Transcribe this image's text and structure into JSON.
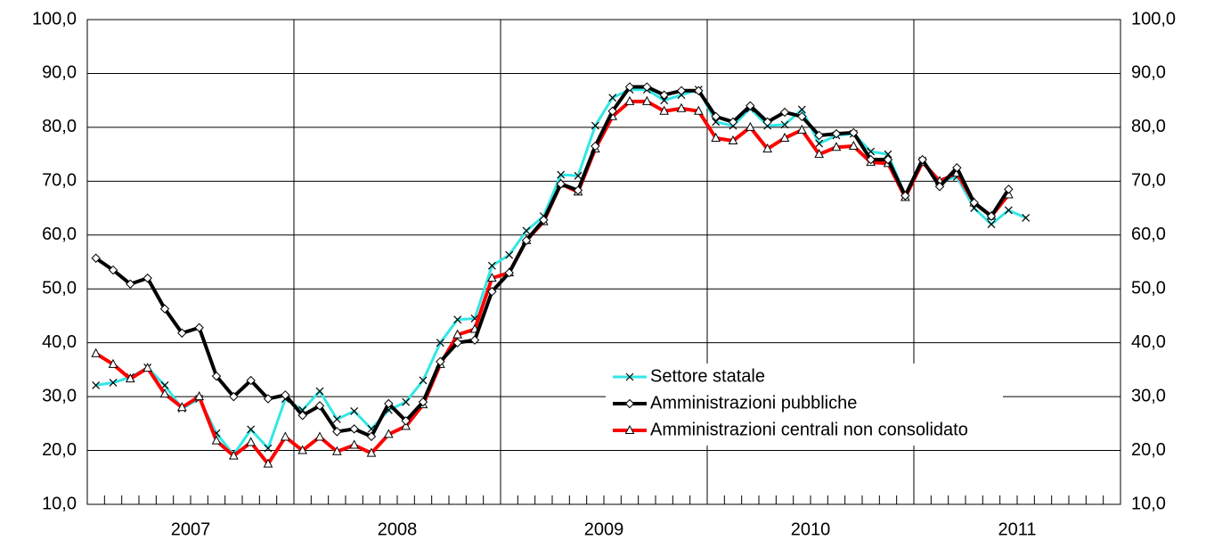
{
  "chart_data": {
    "type": "line",
    "categories": [
      null,
      null,
      null,
      null,
      null,
      null,
      null,
      null,
      null,
      null,
      null,
      null,
      null,
      null,
      null,
      null,
      null,
      null,
      null,
      null,
      null,
      null,
      null,
      null,
      null,
      null,
      null,
      null,
      null,
      null,
      null,
      null,
      null,
      null,
      null,
      null,
      null,
      null,
      null,
      null,
      null,
      null,
      null,
      null,
      null,
      null,
      null,
      null,
      null,
      null,
      null,
      null,
      null,
      null,
      null,
      null,
      null,
      null,
      null,
      null
    ],
    "category_groups": [
      "2007",
      "2008",
      "2009",
      "2010",
      "2011"
    ],
    "ylim": [
      10,
      100
    ],
    "yticks": [
      {
        "value": 10,
        "label": "10,0"
      },
      {
        "value": 20,
        "label": "20,0"
      },
      {
        "value": 30,
        "label": "30,0"
      },
      {
        "value": 40,
        "label": "40,0"
      },
      {
        "value": 50,
        "label": "50,0"
      },
      {
        "value": 60,
        "label": "60,0"
      },
      {
        "value": 70,
        "label": "70,0"
      },
      {
        "value": 80,
        "label": "80,0"
      },
      {
        "value": 90,
        "label": "90,0"
      },
      {
        "value": 100,
        "label": "100,0"
      }
    ],
    "y2lim": [
      10,
      100
    ],
    "y2ticks": [
      {
        "value": 10,
        "label": "10,0"
      },
      {
        "value": 20,
        "label": "20,0"
      },
      {
        "value": 30,
        "label": "30,0"
      },
      {
        "value": 40,
        "label": "40,0"
      },
      {
        "value": 50,
        "label": "50,0"
      },
      {
        "value": 60,
        "label": "60,0"
      },
      {
        "value": 70,
        "label": "70,0"
      },
      {
        "value": 80,
        "label": "80,0"
      },
      {
        "value": 90,
        "label": "90,0"
      },
      {
        "value": 100,
        "label": "100,0"
      }
    ],
    "grid": true,
    "legend": "lower-right",
    "series": [
      {
        "name": "Settore statale",
        "color": "#33e6e6",
        "marker": "x",
        "values": [
          32.1,
          32.6,
          33.6,
          35.4,
          32.1,
          27.8,
          29.6,
          23.2,
          19.2,
          23.9,
          20.4,
          29.6,
          27.5,
          31.0,
          25.8,
          27.3,
          24.0,
          27.5,
          29.0,
          33.0,
          40.0,
          44.3,
          44.5,
          54.3,
          56.3,
          60.8,
          63.5,
          71.2,
          71.0,
          80.3,
          85.5,
          87.0,
          87.0,
          85.0,
          86.0,
          87.0,
          81.0,
          80.3,
          83.5,
          80.3,
          80.5,
          83.3,
          77.0,
          78.5,
          78.8,
          75.5,
          75.0,
          67.3,
          73.8,
          70.0,
          70.8,
          65.0,
          62.0,
          64.6,
          63.2,
          null,
          null,
          null,
          null,
          null
        ]
      },
      {
        "name": "Amministrazioni pubbliche",
        "color": "#000000",
        "marker": "diamond",
        "values": [
          55.7,
          53.5,
          50.9,
          52.0,
          46.3,
          41.8,
          42.8,
          33.8,
          30.0,
          33.0,
          29.6,
          30.3,
          26.5,
          28.3,
          23.5,
          24.0,
          22.6,
          28.7,
          25.5,
          29.0,
          36.5,
          40.0,
          40.5,
          49.5,
          53.0,
          59.0,
          62.8,
          69.5,
          68.3,
          76.5,
          83.0,
          87.5,
          87.5,
          86.0,
          86.8,
          86.8,
          82.0,
          81.0,
          84.0,
          81.0,
          82.8,
          82.0,
          78.5,
          78.8,
          79.0,
          74.0,
          74.0,
          67.3,
          74.0,
          69.0,
          72.5,
          66.0,
          63.5,
          68.5,
          null,
          null,
          null,
          null,
          null,
          null
        ]
      },
      {
        "name": "Amministrazioni centrali non consolidato",
        "color": "#ff0000",
        "marker": "triangle",
        "values": [
          38.0,
          36.0,
          33.3,
          35.3,
          30.5,
          28.0,
          30.0,
          21.8,
          19.0,
          21.5,
          17.5,
          22.5,
          20.0,
          22.5,
          19.8,
          21.0,
          19.5,
          23.0,
          24.5,
          28.5,
          36.0,
          41.5,
          42.5,
          52.0,
          53.0,
          59.0,
          62.5,
          69.5,
          68.0,
          76.0,
          82.0,
          84.8,
          84.8,
          83.0,
          83.5,
          83.0,
          78.0,
          77.5,
          80.0,
          76.0,
          78.0,
          79.5,
          75.0,
          76.3,
          76.5,
          73.5,
          73.3,
          67.0,
          73.5,
          70.0,
          71.5,
          66.0,
          63.5,
          67.5,
          null,
          null,
          null,
          null,
          null,
          null
        ]
      }
    ]
  }
}
